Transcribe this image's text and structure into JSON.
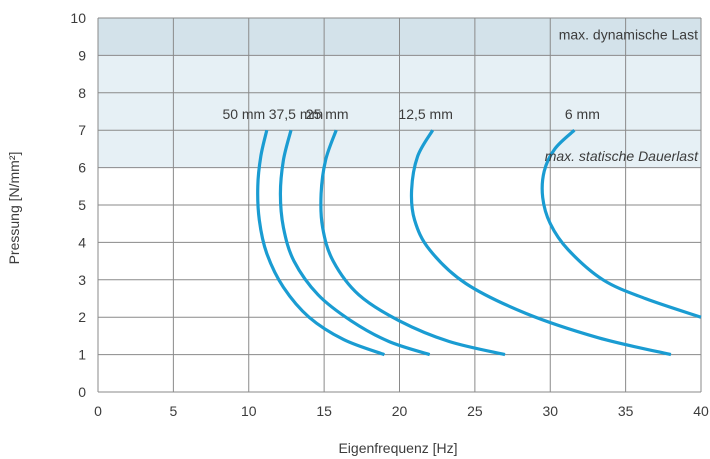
{
  "colors": {
    "dynamic_zone": "#d3e2ea",
    "static_zone": "#e6f0f5",
    "curve": "#1a9cd2",
    "grid": "#8a8a8a"
  },
  "chart_data": {
    "type": "line",
    "title": "",
    "xlabel": "Eigenfrequenz [Hz]",
    "ylabel": "Pressung [N/mm²]",
    "xlim": [
      0,
      40
    ],
    "ylim": [
      0,
      10
    ],
    "x_ticks": [
      0,
      5,
      10,
      15,
      20,
      25,
      30,
      35,
      40
    ],
    "y_ticks": [
      0,
      1,
      2,
      3,
      4,
      5,
      6,
      7,
      8,
      9,
      10
    ],
    "grid": true,
    "zones": [
      {
        "name": "max. dynamische Last",
        "y_range": [
          9,
          10
        ]
      },
      {
        "name": "max. statische Dauerlast",
        "y_range": [
          6,
          9
        ]
      }
    ],
    "series": [
      {
        "name": "50 mm",
        "x": [
          11.2,
          10.8,
          10.6,
          10.7,
          11.2,
          12.3,
          14.0,
          16.3,
          19.0
        ],
        "y": [
          7,
          6.3,
          5.5,
          4.6,
          3.7,
          2.8,
          2.0,
          1.4,
          1.0
        ]
      },
      {
        "name": "37,5 mm",
        "x": [
          12.8,
          12.3,
          12.1,
          12.3,
          13.0,
          14.6,
          16.8,
          19.3,
          22.0
        ],
        "y": [
          7,
          6.2,
          5.3,
          4.4,
          3.5,
          2.6,
          1.9,
          1.35,
          1.0
        ]
      },
      {
        "name": "25 mm",
        "x": [
          15.8,
          15.1,
          14.8,
          14.9,
          15.6,
          17.3,
          20.0,
          23.3,
          27.0
        ],
        "y": [
          7,
          6.2,
          5.3,
          4.4,
          3.5,
          2.6,
          1.9,
          1.35,
          1.0
        ]
      },
      {
        "name": "12,5 mm",
        "x": [
          22.2,
          21.2,
          20.8,
          21.0,
          22.0,
          24.4,
          28.4,
          33.2,
          38.0
        ],
        "y": [
          7,
          6.3,
          5.4,
          4.6,
          3.8,
          2.9,
          2.1,
          1.45,
          1.0
        ]
      },
      {
        "name": "6 mm",
        "x": [
          31.6,
          30.3,
          29.6,
          29.5,
          30.0,
          31.2,
          33.5,
          36.3,
          40.0
        ],
        "y": [
          7,
          6.5,
          5.9,
          5.2,
          4.5,
          3.8,
          3.0,
          2.5,
          2.0
        ]
      }
    ]
  }
}
